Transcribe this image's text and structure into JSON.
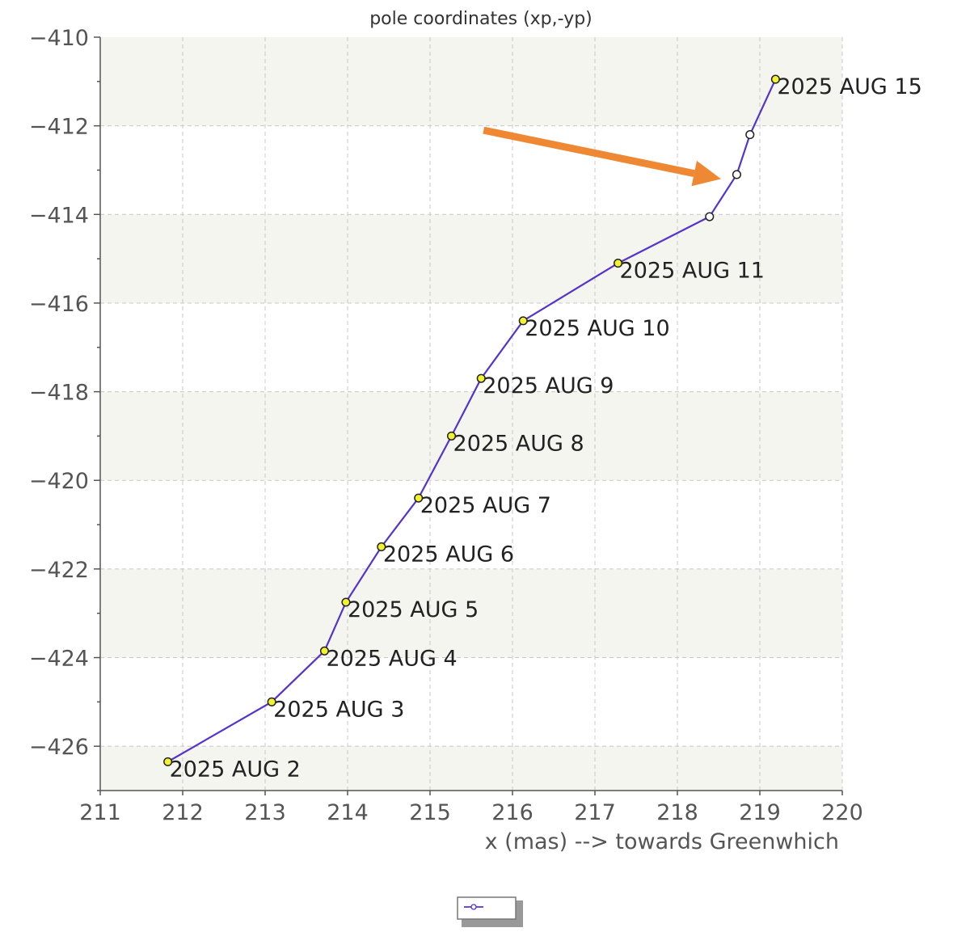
{
  "chart_data": {
    "type": "line",
    "title": "pole coordinates (xp,-yp)",
    "xlabel": "x (mas) --> towards Greenwhich",
    "ylabel": "",
    "xlim": [
      211,
      220
    ],
    "ylim": [
      -427,
      -410
    ],
    "x_ticks": [
      211,
      212,
      213,
      214,
      215,
      216,
      217,
      218,
      219,
      220
    ],
    "y_ticks": [
      -410,
      -412,
      -414,
      -416,
      -418,
      -420,
      -422,
      -424,
      -426
    ],
    "grid": true,
    "colors": {
      "line": "#5533cc",
      "observed_marker": "#f2f230",
      "predicted_marker": "#ffffff",
      "arrow": "#ee8833",
      "band": "#f5f5f0"
    },
    "series": [
      {
        "points": [
          {
            "x": 211.82,
            "y": -426.35,
            "label": "2025 AUG 2",
            "kind": "observed"
          },
          {
            "x": 213.08,
            "y": -425.0,
            "label": "2025 AUG 3",
            "kind": "observed"
          },
          {
            "x": 213.72,
            "y": -423.85,
            "label": "2025 AUG 4",
            "kind": "observed"
          },
          {
            "x": 213.98,
            "y": -422.75,
            "label": "2025 AUG 5",
            "kind": "observed"
          },
          {
            "x": 214.41,
            "y": -421.5,
            "label": "2025 AUG 6",
            "kind": "observed"
          },
          {
            "x": 214.86,
            "y": -420.4,
            "label": "2025 AUG 7",
            "kind": "observed"
          },
          {
            "x": 215.26,
            "y": -419.0,
            "label": "2025 AUG 8",
            "kind": "observed"
          },
          {
            "x": 215.62,
            "y": -417.7,
            "label": "2025 AUG 9",
            "kind": "observed"
          },
          {
            "x": 216.13,
            "y": -416.4,
            "label": "2025 AUG 10",
            "kind": "observed"
          },
          {
            "x": 217.28,
            "y": -415.1,
            "label": "2025 AUG 11",
            "kind": "observed"
          },
          {
            "x": 218.39,
            "y": -414.05,
            "label": "",
            "kind": "predicted"
          },
          {
            "x": 218.72,
            "y": -413.1,
            "label": "",
            "kind": "predicted"
          },
          {
            "x": 218.88,
            "y": -412.2,
            "label": "",
            "kind": "predicted"
          },
          {
            "x": 219.19,
            "y": -410.95,
            "label": "2025 AUG 15",
            "kind": "observed"
          }
        ]
      }
    ],
    "annotations": [
      {
        "type": "arrow",
        "from": {
          "x": 215.65,
          "y": -412.1
        },
        "to": {
          "x": 218.53,
          "y": -413.2
        }
      }
    ],
    "legend": {
      "position": "bottom-center",
      "entries": [
        {
          "marker": "line-with-point"
        }
      ]
    }
  }
}
